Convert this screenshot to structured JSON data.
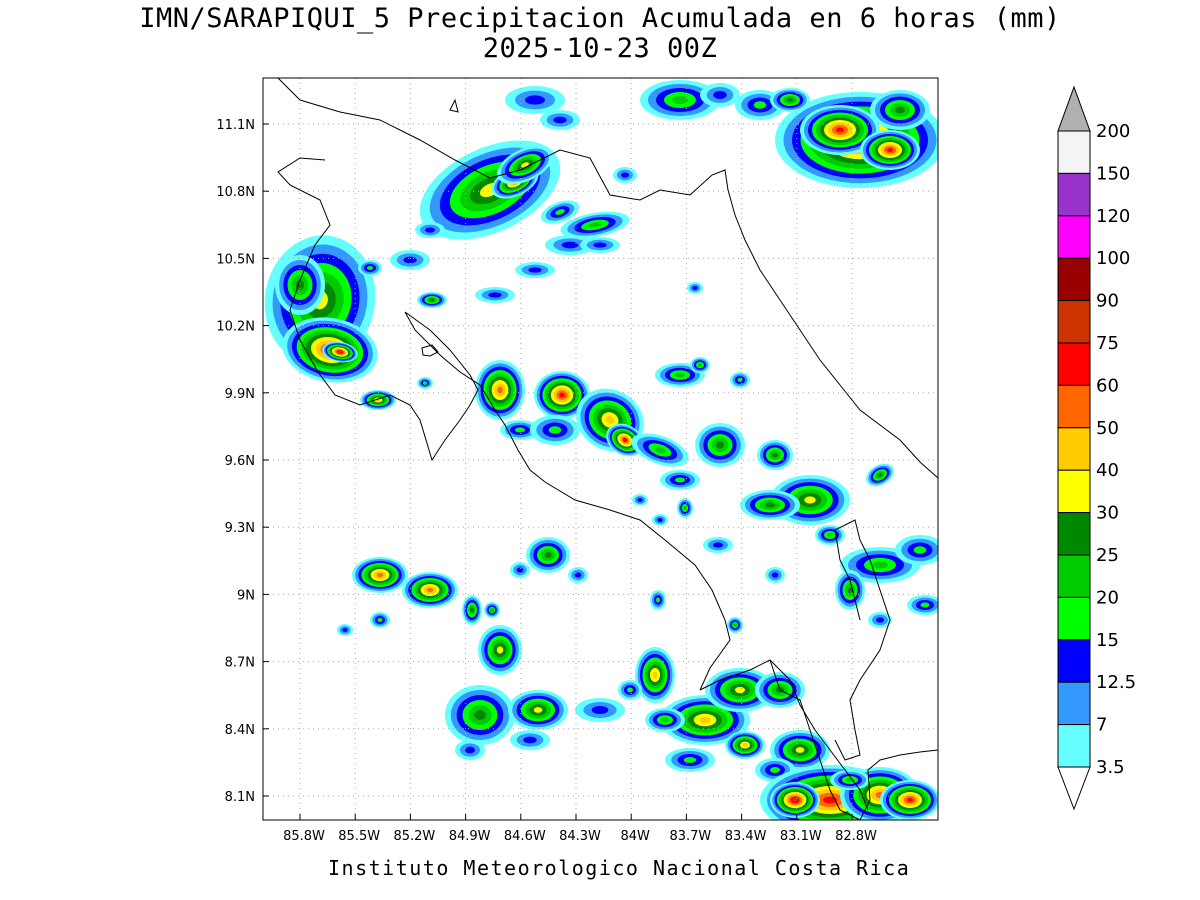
{
  "title_line1": "IMN/SARAPIQUI_5 Precipitacion Acumulada en 6 horas (mm)",
  "title_line2": "2025-10-23 00Z",
  "footer": "Instituto Meteorologico Nacional Costa Rica",
  "axes": {
    "x_ticks": [
      "85.8W",
      "85.5W",
      "85.2W",
      "84.9W",
      "84.6W",
      "84.3W",
      "84W",
      "83.7W",
      "83.4W",
      "83.1W",
      "82.8W"
    ],
    "y_ticks": [
      "11.1N",
      "10.8N",
      "10.5N",
      "10.2N",
      "9.9N",
      "9.6N",
      "9.3N",
      "9N",
      "8.7N",
      "8.4N",
      "8.1N"
    ]
  },
  "legend": {
    "unit": "mm",
    "levels": [
      "3.5",
      "7",
      "12.5",
      "15",
      "20",
      "25",
      "30",
      "40",
      "50",
      "60",
      "75",
      "90",
      "100",
      "120",
      "150",
      "200"
    ],
    "colors": [
      "#66ffff",
      "#3399ff",
      "#0000ff",
      "#00ff00",
      "#00cc00",
      "#008800",
      "#ffff00",
      "#ffcc00",
      "#ff6600",
      "#ff0000",
      "#cc3300",
      "#990000",
      "#ff00ff",
      "#9933cc",
      "#f4f4f4",
      "#b0b0b0"
    ]
  },
  "colors": {
    "coast": "#000000",
    "grid": "#aaaaaa"
  }
}
